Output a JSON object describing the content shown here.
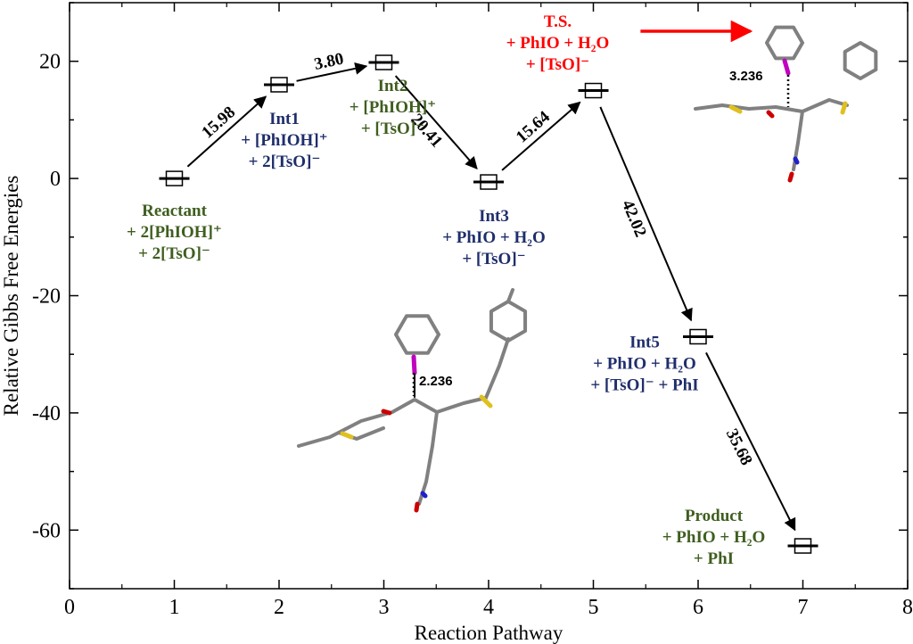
{
  "chart_data": {
    "type": "line",
    "xlabel": "Reaction Pathway",
    "ylabel": "Relative Gibbs Free Energies",
    "xlim": [
      0,
      8
    ],
    "ylim": [
      -70,
      30
    ],
    "x_ticks": [
      "0",
      "1",
      "2",
      "3",
      "4",
      "5",
      "6",
      "7",
      "8"
    ],
    "y_ticks": [
      "-60",
      "-40",
      "-20",
      "0",
      "20"
    ],
    "grid": false,
    "colors": {
      "green": "#3f5e1f",
      "navy": "#1f2e6b",
      "red": "#ff0000",
      "black": "#000000"
    },
    "points": [
      {
        "x": 1,
        "y": 0.0,
        "name": "Reactant",
        "lines": [
          "+ 2[PhIOH]⁺",
          "+ 2[TsO]⁻"
        ],
        "color": "green"
      },
      {
        "x": 2,
        "y": 16.0,
        "name": "Int1",
        "lines": [
          "+ [PhIOH]⁺",
          "+ 2[TsO]⁻"
        ],
        "color": "navy"
      },
      {
        "x": 3,
        "y": 19.8,
        "name": "Int2",
        "lines": [
          "+ [PhIOH]⁺",
          "+ [TsO]⁻"
        ],
        "color": "green"
      },
      {
        "x": 4,
        "y": -0.6,
        "name": "Int3",
        "lines": [
          "+ PhIO + H₂O",
          "+ [TsO]⁻"
        ],
        "color": "navy"
      },
      {
        "x": 5,
        "y": 15.0,
        "name": "T.S.",
        "lines": [
          "+ PhIO + H₂O",
          "+ [TsO]⁻"
        ],
        "color": "red"
      },
      {
        "x": 6,
        "y": -27.0,
        "name": "Int5",
        "lines": [
          "+ PhIO + H₂O",
          "+ [TsO]⁻ + PhI"
        ],
        "color": "navy"
      },
      {
        "x": 7,
        "y": -62.7,
        "name": "Product",
        "lines": [
          "+ PhIO + H₂O",
          "+ PhI"
        ],
        "color": "green"
      }
    ],
    "barriers": [
      "15.98",
      "3.80",
      "20.41",
      "15.64",
      "42.02",
      "35.68"
    ],
    "distance_labels": [
      "3.236",
      "2.236"
    ]
  }
}
